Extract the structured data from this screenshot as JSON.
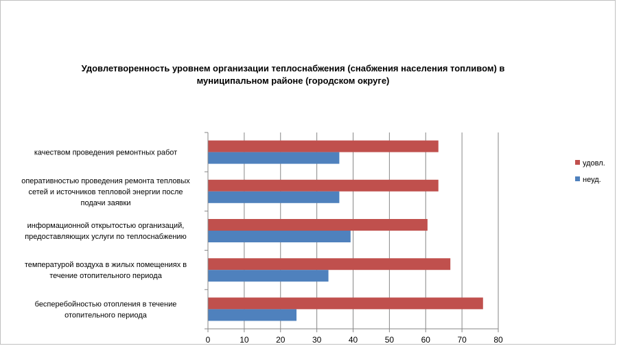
{
  "chart_data": {
    "type": "bar",
    "orientation": "horizontal",
    "title": "Удовлетворенность уровнем организации теплоснабжения (снабжения населения топливом) в муниципальном районе (городском округе)",
    "title_lines": [
      "Удовлетворенность уровнем организации теплоснабжения (снабжения населения топливом) в",
      "муниципальном районе (городском округе)"
    ],
    "categories": [
      "качеством проведения ремонтных работ",
      "оперативностью проведения ремонта тепловых сетей и источников тепловой энергии после подачи заявки",
      "информационной открытостью организаций, предоставляющих услуги по теплоснабжению",
      "температурой воздуха в жилых помещениях в течение отопительного периода",
      "бесперебойностью отопления в течение отопительного периода"
    ],
    "category_lines": [
      [
        "качеством проведения ремонтных работ"
      ],
      [
        "оперативностью проведения ремонта тепловых",
        "сетей и источников тепловой энергии после",
        "подачи заявки"
      ],
      [
        "информационной открытостью организаций,",
        "предоставляющих услуги по теплоснабжению"
      ],
      [
        "температурой воздуха в жилых помещениях в",
        "течение отопительного периода"
      ],
      [
        "бесперебойностью отопления в течение",
        "отопительного периода"
      ]
    ],
    "series": [
      {
        "name": "удовл.",
        "color": "#c0504d",
        "values": [
          63.5,
          63.5,
          60.5,
          66.8,
          75.8
        ]
      },
      {
        "name": "неуд.",
        "color": "#4f81bd",
        "values": [
          36.2,
          36.2,
          39.3,
          33.2,
          24.4
        ]
      }
    ],
    "xlim": [
      0,
      80
    ],
    "x_ticks": [
      "0",
      "10",
      "20",
      "30",
      "40",
      "50",
      "60",
      "70",
      "80"
    ],
    "xlabel": "",
    "ylabel": "",
    "grid": "vertical",
    "legend_position": "right",
    "legend_order": [
      "удовл.",
      "неуд."
    ],
    "gridline_color": "#868686"
  }
}
